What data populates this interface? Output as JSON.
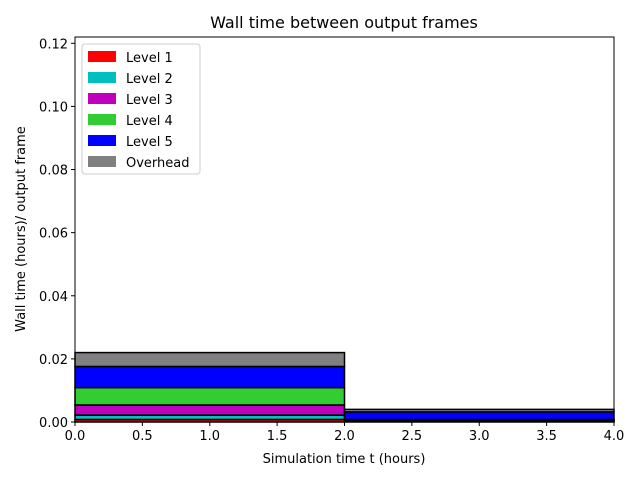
{
  "chart_data": {
    "type": "bar",
    "title": "Wall time between output frames",
    "xlabel": "Simulation time t (hours)",
    "ylabel": "Wall time (hours)/ output frame",
    "xlim": [
      0.0,
      4.0
    ],
    "ylim": [
      0.0,
      0.122
    ],
    "xticks": [
      "0.0",
      "0.5",
      "1.0",
      "1.5",
      "2.0",
      "2.5",
      "3.0",
      "3.5",
      "4.0"
    ],
    "xtick_values": [
      0.0,
      0.5,
      1.0,
      1.5,
      2.0,
      2.5,
      3.0,
      3.5,
      4.0
    ],
    "yticks": [
      "0.00",
      "0.02",
      "0.04",
      "0.06",
      "0.08",
      "0.10",
      "0.12"
    ],
    "ytick_values": [
      0.0,
      0.02,
      0.04,
      0.06,
      0.08,
      0.1,
      0.12
    ],
    "stacked": true,
    "legend_position": "top-left",
    "bins": [
      {
        "x_start": 0.0,
        "x_end": 2.0
      },
      {
        "x_start": 2.0,
        "x_end": 4.0
      }
    ],
    "series": [
      {
        "name": "Level 1",
        "color": "#ff0000",
        "values": [
          0.0008,
          0.0002
        ]
      },
      {
        "name": "Level 2",
        "color": "#00bfbf",
        "values": [
          0.0014,
          0.0002
        ]
      },
      {
        "name": "Level 3",
        "color": "#bf00bf",
        "values": [
          0.0032,
          0.0002
        ]
      },
      {
        "name": "Level 4",
        "color": "#32cd32",
        "values": [
          0.0055,
          0.0002
        ]
      },
      {
        "name": "Level 5",
        "color": "#0000ff",
        "values": [
          0.0067,
          0.0024
        ]
      },
      {
        "name": "Overhead",
        "color": "#808080",
        "values": [
          0.0044,
          0.0008
        ]
      }
    ]
  }
}
